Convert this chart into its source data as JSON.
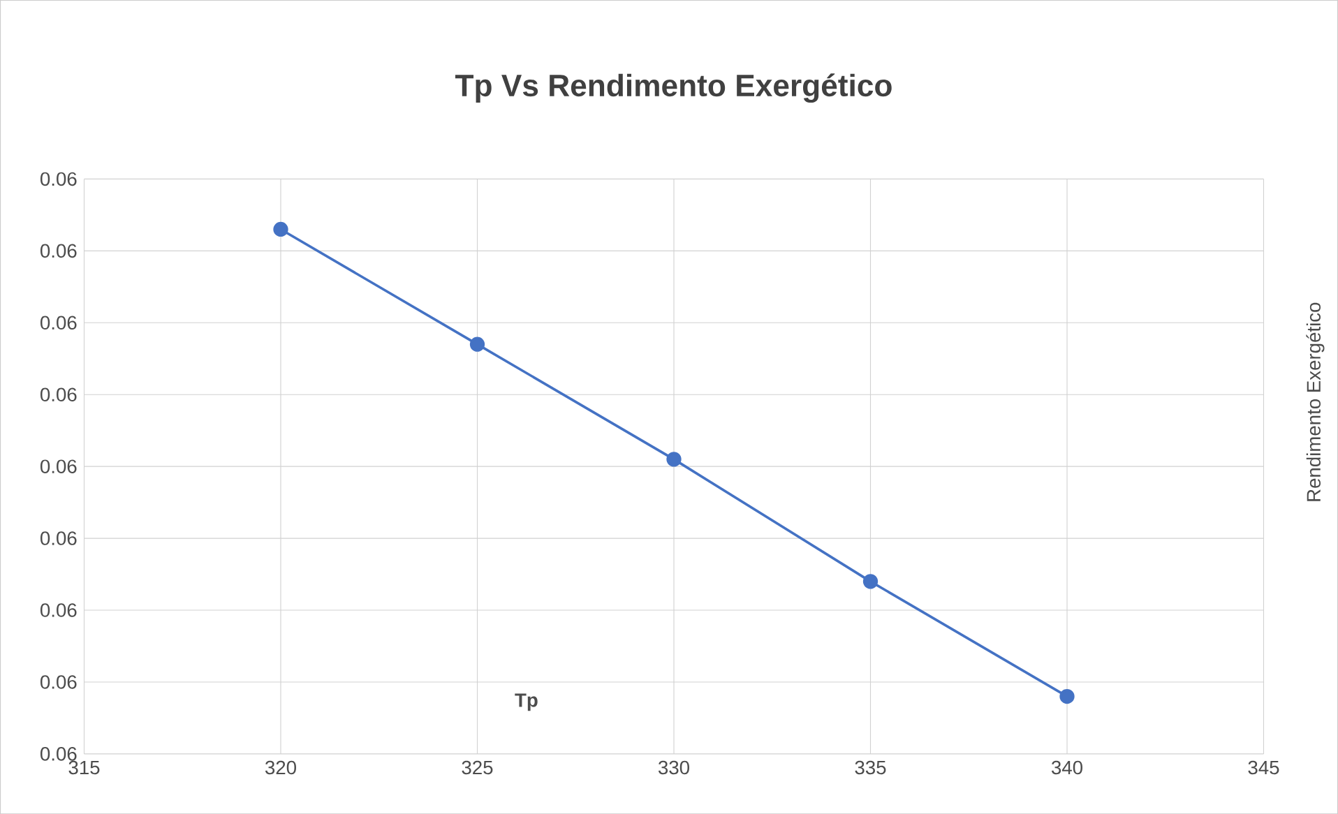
{
  "chart_data": {
    "type": "line",
    "title": "Tp Vs Rendimento Exergético",
    "xlabel": "Tp",
    "y2label": "Rendimento Exergético",
    "x": [
      320,
      325,
      330,
      335,
      340
    ],
    "series": [
      {
        "color": "#4472c4",
        "values": [
          0.06073,
          0.06057,
          0.06041,
          0.06024,
          0.06008
        ]
      }
    ],
    "xlim": [
      315,
      345
    ],
    "xticks": [
      315,
      320,
      325,
      330,
      335,
      340,
      345
    ],
    "ylim": [
      0.06,
      0.0608
    ],
    "yticks": [
      {
        "value": 0.06,
        "label": "0.06"
      },
      {
        "value": 0.0601,
        "label": "0.06"
      },
      {
        "value": 0.0602,
        "label": "0.06"
      },
      {
        "value": 0.0603,
        "label": "0.06"
      },
      {
        "value": 0.0604,
        "label": "0.06"
      },
      {
        "value": 0.0605,
        "label": "0.06"
      },
      {
        "value": 0.0606,
        "label": "0.06"
      },
      {
        "value": 0.0607,
        "label": "0.06"
      },
      {
        "value": 0.0608,
        "label": "0.06"
      }
    ],
    "grid": true,
    "marker": "circle",
    "line_style": "solid"
  }
}
